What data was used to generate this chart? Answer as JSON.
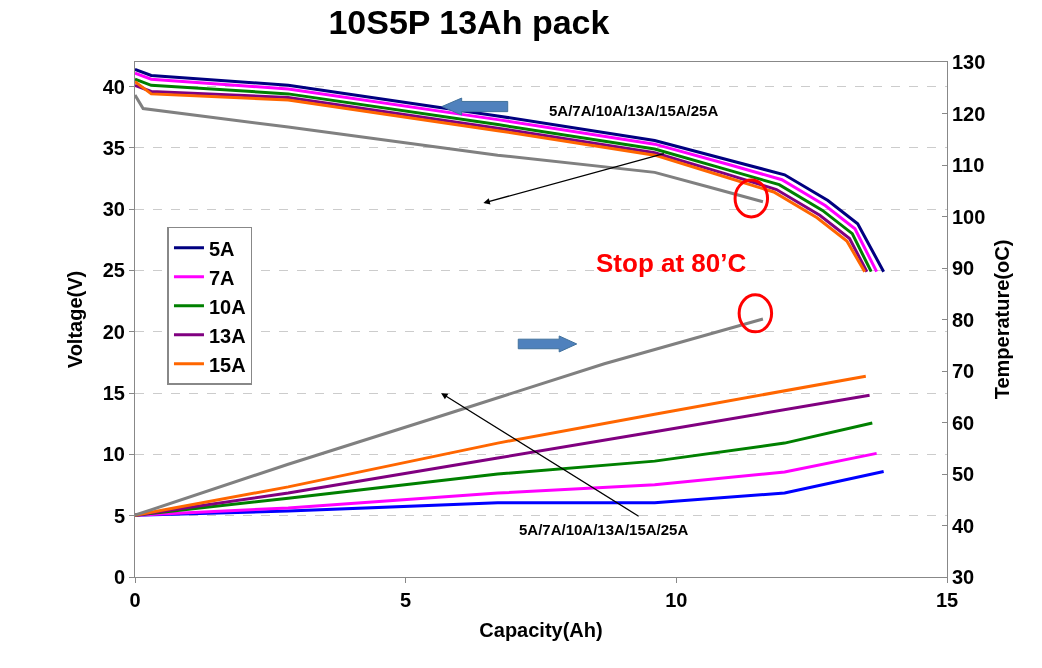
{
  "chart_data": {
    "type": "line",
    "title": "10S5P 13Ah pack",
    "xlabel": "Capacity(Ah)",
    "ylabel": "Voltage(V)",
    "y2label": "Temperature(oC)",
    "xlim": [
      0,
      15
    ],
    "xticks": [
      0,
      5,
      10,
      15
    ],
    "ylim": [
      0,
      42
    ],
    "yticks": [
      0,
      5,
      10,
      15,
      20,
      25,
      30,
      35,
      40
    ],
    "y2lim": [
      30,
      130
    ],
    "y2ticks": [
      30,
      40,
      50,
      60,
      70,
      80,
      90,
      100,
      110,
      120,
      130
    ],
    "grid": "y",
    "legend": "top left",
    "line_style": "solid",
    "series": [
      {
        "name": "5A",
        "color": "#000080",
        "x": [
          0,
          0.3,
          2.83,
          6.7,
          9.6,
          11.05,
          12.0,
          12.8,
          13.35,
          13.83
        ],
        "values": [
          41.4,
          40.9,
          40.1,
          37.6,
          35.6,
          33.9,
          32.8,
          30.7,
          28.8,
          24.9
        ]
      },
      {
        "name": "7A",
        "color": "#ff00ff",
        "x": [
          0,
          0.3,
          2.83,
          6.7,
          9.6,
          11.0,
          11.95,
          12.75,
          13.3,
          13.7
        ],
        "values": [
          41.1,
          40.6,
          39.8,
          37.3,
          35.3,
          33.6,
          32.4,
          30.3,
          28.4,
          24.9
        ]
      },
      {
        "name": "10A",
        "color": "#008000",
        "x": [
          0,
          0.3,
          2.83,
          6.7,
          9.6,
          10.95,
          11.9,
          12.7,
          13.25,
          13.6
        ],
        "values": [
          40.6,
          40.1,
          39.4,
          36.9,
          34.9,
          33.2,
          32.0,
          29.9,
          28.0,
          24.9
        ]
      },
      {
        "name": "13A",
        "color": "#800080",
        "x": [
          0,
          0.3,
          2.83,
          6.7,
          9.6,
          10.9,
          11.85,
          12.65,
          13.2,
          13.52
        ],
        "values": [
          40.1,
          39.6,
          39.1,
          36.6,
          34.6,
          32.9,
          31.6,
          29.5,
          27.6,
          24.9
        ]
      },
      {
        "name": "15A",
        "color": "#ff6600",
        "x": [
          0,
          0.3,
          2.83,
          6.7,
          9.6,
          10.85,
          11.8,
          12.6,
          13.15,
          13.48
        ],
        "values": [
          40.4,
          39.4,
          38.9,
          36.4,
          34.4,
          32.7,
          31.4,
          29.3,
          27.4,
          24.9
        ]
      },
      {
        "color": "#808080",
        "x": [
          0,
          0.15,
          2.83,
          6.7,
          9.6,
          10.6,
          11.6
        ],
        "values": [
          39.3,
          38.2,
          36.7,
          34.4,
          33.0,
          31.8,
          30.6
        ]
      },
      {
        "color": "#0000ff",
        "axis": "y2",
        "x": [
          0,
          2.83,
          6.7,
          9.6,
          12.0,
          13.83
        ],
        "values": [
          42,
          42.8,
          44.4,
          44.4,
          46.3,
          50.5
        ]
      },
      {
        "color": "#ff00ff",
        "axis": "y2",
        "x": [
          0,
          2.83,
          6.7,
          9.6,
          12.0,
          13.7
        ],
        "values": [
          42,
          43.4,
          46.3,
          47.9,
          50.4,
          54
        ]
      },
      {
        "color": "#008000",
        "axis": "y2",
        "x": [
          0,
          2.83,
          6.7,
          9.6,
          12.0,
          13.62
        ],
        "values": [
          42,
          45.3,
          50,
          52.5,
          56,
          59.9
        ]
      },
      {
        "color": "#800080",
        "axis": "y2",
        "x": [
          0,
          2.83,
          6.7,
          9.6,
          13.57
        ],
        "values": [
          42,
          46.3,
          53.1,
          58.2,
          65.3
        ]
      },
      {
        "color": "#ff6600",
        "axis": "y2",
        "x": [
          0,
          2.83,
          6.7,
          9.6,
          13.5
        ],
        "values": [
          42,
          47.5,
          56,
          61.6,
          69
        ]
      },
      {
        "color": "#808080",
        "axis": "y2",
        "x": [
          0,
          2.83,
          5.75,
          8.67,
          11.6
        ],
        "values": [
          42,
          51.9,
          61.6,
          71.4,
          80.1
        ]
      }
    ],
    "annotations": [
      "5A/7A/10A/13A/15A/25A",
      "5A/7A/10A/13A/15A/25A",
      "Stop at 80’C"
    ]
  }
}
